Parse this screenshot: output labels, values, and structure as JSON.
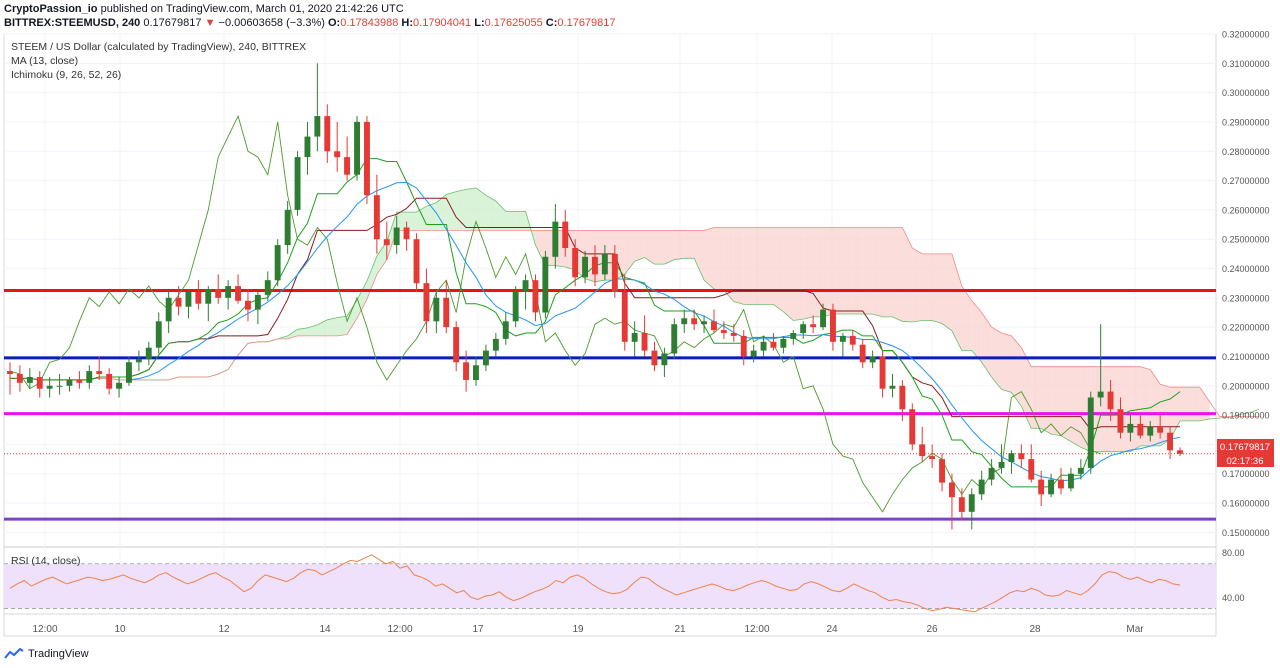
{
  "header": {
    "author": "CryptoPassion_io",
    "published_text": "published on TradingView.com, March 01, 2020 21:42:26 UTC",
    "symbol": "BITTREX:STEEMUSD, 240",
    "last": "0.17679817",
    "arrow": "▼",
    "change": "−0.00603658 (−3.3%)",
    "o_label": "O:",
    "o": "0.17843988",
    "h_label": "H:",
    "h": "0.17904041",
    "l_label": "L:",
    "l": "0.17625055",
    "c_label": "C:",
    "c": "0.17679817"
  },
  "footer": {
    "brand": "TradingView"
  },
  "colors": {
    "up": "#2e7d32",
    "down": "#e53935",
    "ma": "#2196f3",
    "tenkan": "#1aa31a",
    "kijun": "#8b1a1a",
    "lagging": "#4c9a2a",
    "kumo_bull": "#c9eec9",
    "kumo_bear": "#f9d0cc",
    "level_red": "#ee1111",
    "level_blue": "#0a1fb8",
    "level_magenta": "#ee11ee",
    "level_purple": "#7a44c2",
    "rsi_line": "#f0824a",
    "rsi_band": "#efe0fb"
  },
  "chart_data": [
    {
      "type": "candlestick",
      "title": "STEEM / US Dollar (calculated by TradingView), 240, BITTREX",
      "indicators": [
        "MA (13, close)",
        "Ichimoku (9, 26, 52, 26)"
      ],
      "ylim": [
        0.145,
        0.32
      ],
      "y_ticks": [
        "0.15000000",
        "0.16000000",
        "0.17000000",
        "0.18000000",
        "0.19000000",
        "0.20000000",
        "0.21000000",
        "0.22000000",
        "0.23000000",
        "0.24000000",
        "0.25000000",
        "0.26000000",
        "0.27000000",
        "0.28000000",
        "0.29000000",
        "0.30000000",
        "0.31000000",
        "0.32000000"
      ],
      "x_ticks": [
        "12:00",
        "10",
        "12",
        "14",
        "12:00",
        "17",
        "19",
        "21",
        "12:00",
        "24",
        "26",
        "28",
        "Mar"
      ],
      "last_price_label": "0.17679817",
      "countdown_label": "02:17:36",
      "last_price": 0.1768,
      "horizontal_levels": [
        {
          "name": "resistance-red",
          "value": 0.2325,
          "color": "#ee1111"
        },
        {
          "name": "support-blue",
          "value": 0.2095,
          "color": "#0a1fb8"
        },
        {
          "name": "support-magenta",
          "value": 0.1905,
          "color": "#ee11ee"
        },
        {
          "name": "support-purple",
          "value": 0.1545,
          "color": "#7a44c2"
        }
      ],
      "candles": [
        {
          "o": 0.205,
          "h": 0.208,
          "l": 0.197,
          "c": 0.204
        },
        {
          "o": 0.204,
          "h": 0.207,
          "l": 0.198,
          "c": 0.201
        },
        {
          "o": 0.201,
          "h": 0.206,
          "l": 0.199,
          "c": 0.203
        },
        {
          "o": 0.203,
          "h": 0.205,
          "l": 0.196,
          "c": 0.199
        },
        {
          "o": 0.199,
          "h": 0.203,
          "l": 0.196,
          "c": 0.2
        },
        {
          "o": 0.2,
          "h": 0.204,
          "l": 0.197,
          "c": 0.2
        },
        {
          "o": 0.2,
          "h": 0.203,
          "l": 0.198,
          "c": 0.202
        },
        {
          "o": 0.202,
          "h": 0.205,
          "l": 0.199,
          "c": 0.201
        },
        {
          "o": 0.201,
          "h": 0.207,
          "l": 0.199,
          "c": 0.205
        },
        {
          "o": 0.205,
          "h": 0.21,
          "l": 0.202,
          "c": 0.204
        },
        {
          "o": 0.204,
          "h": 0.206,
          "l": 0.197,
          "c": 0.199
        },
        {
          "o": 0.199,
          "h": 0.203,
          "l": 0.196,
          "c": 0.201
        },
        {
          "o": 0.201,
          "h": 0.21,
          "l": 0.2,
          "c": 0.208
        },
        {
          "o": 0.208,
          "h": 0.212,
          "l": 0.205,
          "c": 0.209
        },
        {
          "o": 0.209,
          "h": 0.215,
          "l": 0.207,
          "c": 0.213
        },
        {
          "o": 0.213,
          "h": 0.225,
          "l": 0.211,
          "c": 0.222
        },
        {
          "o": 0.222,
          "h": 0.233,
          "l": 0.218,
          "c": 0.23
        },
        {
          "o": 0.23,
          "h": 0.234,
          "l": 0.224,
          "c": 0.227
        },
        {
          "o": 0.227,
          "h": 0.233,
          "l": 0.223,
          "c": 0.232
        },
        {
          "o": 0.232,
          "h": 0.236,
          "l": 0.226,
          "c": 0.228
        },
        {
          "o": 0.228,
          "h": 0.234,
          "l": 0.222,
          "c": 0.233
        },
        {
          "o": 0.233,
          "h": 0.238,
          "l": 0.228,
          "c": 0.23
        },
        {
          "o": 0.23,
          "h": 0.236,
          "l": 0.226,
          "c": 0.234
        },
        {
          "o": 0.234,
          "h": 0.238,
          "l": 0.228,
          "c": 0.229
        },
        {
          "o": 0.229,
          "h": 0.233,
          "l": 0.222,
          "c": 0.226
        },
        {
          "o": 0.226,
          "h": 0.232,
          "l": 0.221,
          "c": 0.231
        },
        {
          "o": 0.231,
          "h": 0.239,
          "l": 0.229,
          "c": 0.236
        },
        {
          "o": 0.236,
          "h": 0.25,
          "l": 0.234,
          "c": 0.248
        },
        {
          "o": 0.248,
          "h": 0.263,
          "l": 0.245,
          "c": 0.26
        },
        {
          "o": 0.26,
          "h": 0.28,
          "l": 0.258,
          "c": 0.278
        },
        {
          "o": 0.278,
          "h": 0.29,
          "l": 0.272,
          "c": 0.285
        },
        {
          "o": 0.285,
          "h": 0.31,
          "l": 0.28,
          "c": 0.292
        },
        {
          "o": 0.292,
          "h": 0.296,
          "l": 0.276,
          "c": 0.28
        },
        {
          "o": 0.28,
          "h": 0.29,
          "l": 0.273,
          "c": 0.278
        },
        {
          "o": 0.278,
          "h": 0.285,
          "l": 0.27,
          "c": 0.272
        },
        {
          "o": 0.272,
          "h": 0.292,
          "l": 0.27,
          "c": 0.29
        },
        {
          "o": 0.29,
          "h": 0.292,
          "l": 0.262,
          "c": 0.265
        },
        {
          "o": 0.265,
          "h": 0.272,
          "l": 0.245,
          "c": 0.25
        },
        {
          "o": 0.25,
          "h": 0.256,
          "l": 0.243,
          "c": 0.248
        },
        {
          "o": 0.248,
          "h": 0.258,
          "l": 0.245,
          "c": 0.254
        },
        {
          "o": 0.254,
          "h": 0.256,
          "l": 0.246,
          "c": 0.25
        },
        {
          "o": 0.25,
          "h": 0.252,
          "l": 0.232,
          "c": 0.235
        },
        {
          "o": 0.235,
          "h": 0.24,
          "l": 0.218,
          "c": 0.222
        },
        {
          "o": 0.222,
          "h": 0.232,
          "l": 0.218,
          "c": 0.23
        },
        {
          "o": 0.23,
          "h": 0.236,
          "l": 0.218,
          "c": 0.22
        },
        {
          "o": 0.22,
          "h": 0.222,
          "l": 0.205,
          "c": 0.208
        },
        {
          "o": 0.208,
          "h": 0.212,
          "l": 0.198,
          "c": 0.202
        },
        {
          "o": 0.202,
          "h": 0.21,
          "l": 0.2,
          "c": 0.207
        },
        {
          "o": 0.207,
          "h": 0.214,
          "l": 0.205,
          "c": 0.212
        },
        {
          "o": 0.212,
          "h": 0.218,
          "l": 0.21,
          "c": 0.216
        },
        {
          "o": 0.216,
          "h": 0.225,
          "l": 0.214,
          "c": 0.222
        },
        {
          "o": 0.222,
          "h": 0.234,
          "l": 0.22,
          "c": 0.232
        },
        {
          "o": 0.232,
          "h": 0.238,
          "l": 0.226,
          "c": 0.236
        },
        {
          "o": 0.236,
          "h": 0.238,
          "l": 0.222,
          "c": 0.225
        },
        {
          "o": 0.225,
          "h": 0.246,
          "l": 0.223,
          "c": 0.244
        },
        {
          "o": 0.244,
          "h": 0.262,
          "l": 0.24,
          "c": 0.256
        },
        {
          "o": 0.256,
          "h": 0.26,
          "l": 0.244,
          "c": 0.247
        },
        {
          "o": 0.247,
          "h": 0.25,
          "l": 0.234,
          "c": 0.237
        },
        {
          "o": 0.237,
          "h": 0.246,
          "l": 0.235,
          "c": 0.244
        },
        {
          "o": 0.244,
          "h": 0.248,
          "l": 0.234,
          "c": 0.238
        },
        {
          "o": 0.238,
          "h": 0.248,
          "l": 0.236,
          "c": 0.245
        },
        {
          "o": 0.245,
          "h": 0.248,
          "l": 0.23,
          "c": 0.232
        },
        {
          "o": 0.232,
          "h": 0.238,
          "l": 0.212,
          "c": 0.215
        },
        {
          "o": 0.215,
          "h": 0.222,
          "l": 0.21,
          "c": 0.218
        },
        {
          "o": 0.218,
          "h": 0.224,
          "l": 0.21,
          "c": 0.212
        },
        {
          "o": 0.212,
          "h": 0.215,
          "l": 0.205,
          "c": 0.207
        },
        {
          "o": 0.207,
          "h": 0.213,
          "l": 0.203,
          "c": 0.211
        },
        {
          "o": 0.211,
          "h": 0.223,
          "l": 0.209,
          "c": 0.221
        },
        {
          "o": 0.221,
          "h": 0.226,
          "l": 0.218,
          "c": 0.223
        },
        {
          "o": 0.223,
          "h": 0.226,
          "l": 0.219,
          "c": 0.221
        },
        {
          "o": 0.221,
          "h": 0.224,
          "l": 0.218,
          "c": 0.222
        },
        {
          "o": 0.222,
          "h": 0.226,
          "l": 0.218,
          "c": 0.219
        },
        {
          "o": 0.219,
          "h": 0.222,
          "l": 0.216,
          "c": 0.218
        },
        {
          "o": 0.218,
          "h": 0.221,
          "l": 0.215,
          "c": 0.217
        },
        {
          "o": 0.217,
          "h": 0.219,
          "l": 0.207,
          "c": 0.21
        },
        {
          "o": 0.21,
          "h": 0.214,
          "l": 0.208,
          "c": 0.212
        },
        {
          "o": 0.212,
          "h": 0.217,
          "l": 0.21,
          "c": 0.215
        },
        {
          "o": 0.215,
          "h": 0.218,
          "l": 0.212,
          "c": 0.213
        },
        {
          "o": 0.213,
          "h": 0.217,
          "l": 0.211,
          "c": 0.216
        },
        {
          "o": 0.216,
          "h": 0.219,
          "l": 0.214,
          "c": 0.218
        },
        {
          "o": 0.218,
          "h": 0.222,
          "l": 0.216,
          "c": 0.221
        },
        {
          "o": 0.221,
          "h": 0.224,
          "l": 0.218,
          "c": 0.22
        },
        {
          "o": 0.22,
          "h": 0.228,
          "l": 0.219,
          "c": 0.226
        },
        {
          "o": 0.226,
          "h": 0.228,
          "l": 0.212,
          "c": 0.215
        },
        {
          "o": 0.215,
          "h": 0.218,
          "l": 0.21,
          "c": 0.217
        },
        {
          "o": 0.217,
          "h": 0.219,
          "l": 0.212,
          "c": 0.214
        },
        {
          "o": 0.214,
          "h": 0.216,
          "l": 0.206,
          "c": 0.208
        },
        {
          "o": 0.208,
          "h": 0.212,
          "l": 0.206,
          "c": 0.21
        },
        {
          "o": 0.21,
          "h": 0.212,
          "l": 0.196,
          "c": 0.199
        },
        {
          "o": 0.199,
          "h": 0.204,
          "l": 0.196,
          "c": 0.2
        },
        {
          "o": 0.2,
          "h": 0.202,
          "l": 0.188,
          "c": 0.192
        },
        {
          "o": 0.192,
          "h": 0.194,
          "l": 0.178,
          "c": 0.18
        },
        {
          "o": 0.18,
          "h": 0.186,
          "l": 0.174,
          "c": 0.176
        },
        {
          "o": 0.176,
          "h": 0.18,
          "l": 0.172,
          "c": 0.175
        },
        {
          "o": 0.175,
          "h": 0.177,
          "l": 0.164,
          "c": 0.167
        },
        {
          "o": 0.167,
          "h": 0.17,
          "l": 0.151,
          "c": 0.162
        },
        {
          "o": 0.162,
          "h": 0.165,
          "l": 0.154,
          "c": 0.157
        },
        {
          "o": 0.157,
          "h": 0.165,
          "l": 0.151,
          "c": 0.163
        },
        {
          "o": 0.163,
          "h": 0.171,
          "l": 0.161,
          "c": 0.168
        },
        {
          "o": 0.168,
          "h": 0.175,
          "l": 0.166,
          "c": 0.172
        },
        {
          "o": 0.172,
          "h": 0.18,
          "l": 0.17,
          "c": 0.174
        },
        {
          "o": 0.174,
          "h": 0.178,
          "l": 0.17,
          "c": 0.177
        },
        {
          "o": 0.177,
          "h": 0.18,
          "l": 0.172,
          "c": 0.175
        },
        {
          "o": 0.175,
          "h": 0.18,
          "l": 0.167,
          "c": 0.168
        },
        {
          "o": 0.168,
          "h": 0.171,
          "l": 0.159,
          "c": 0.163
        },
        {
          "o": 0.163,
          "h": 0.17,
          "l": 0.162,
          "c": 0.168
        },
        {
          "o": 0.168,
          "h": 0.172,
          "l": 0.163,
          "c": 0.165
        },
        {
          "o": 0.165,
          "h": 0.172,
          "l": 0.164,
          "c": 0.17
        },
        {
          "o": 0.17,
          "h": 0.175,
          "l": 0.168,
          "c": 0.172
        },
        {
          "o": 0.172,
          "h": 0.198,
          "l": 0.17,
          "c": 0.196
        },
        {
          "o": 0.196,
          "h": 0.221,
          "l": 0.193,
          "c": 0.198
        },
        {
          "o": 0.198,
          "h": 0.202,
          "l": 0.188,
          "c": 0.192
        },
        {
          "o": 0.192,
          "h": 0.196,
          "l": 0.182,
          "c": 0.184
        },
        {
          "o": 0.184,
          "h": 0.19,
          "l": 0.181,
          "c": 0.187
        },
        {
          "o": 0.187,
          "h": 0.19,
          "l": 0.182,
          "c": 0.183
        },
        {
          "o": 0.183,
          "h": 0.188,
          "l": 0.181,
          "c": 0.186
        },
        {
          "o": 0.186,
          "h": 0.19,
          "l": 0.182,
          "c": 0.184
        },
        {
          "o": 0.184,
          "h": 0.186,
          "l": 0.175,
          "c": 0.178
        },
        {
          "o": 0.178,
          "h": 0.179,
          "l": 0.176,
          "c": 0.1768
        }
      ]
    },
    {
      "type": "line",
      "title": "RSI (14, close)",
      "ylim": [
        25,
        85
      ],
      "y_ticks": [
        "80.00",
        "40.00"
      ],
      "band": [
        30,
        70
      ],
      "values": [
        48,
        52,
        55,
        50,
        53,
        56,
        58,
        55,
        52,
        54,
        56,
        58,
        57,
        55,
        56,
        58,
        60,
        57,
        55,
        53,
        56,
        60,
        62,
        58,
        55,
        52,
        54,
        57,
        60,
        62,
        58,
        55,
        50,
        45,
        48,
        55,
        60,
        58,
        56,
        54,
        57,
        62,
        65,
        64,
        60,
        63,
        66,
        70,
        73,
        72,
        75,
        78,
        74,
        70,
        72,
        66,
        68,
        60,
        58,
        55,
        50,
        52,
        48,
        44,
        46,
        40,
        38,
        41,
        42,
        45,
        40,
        37,
        39,
        42,
        45,
        47,
        50,
        55,
        53,
        58,
        60,
        57,
        52,
        48,
        45,
        43,
        44,
        47,
        53,
        58,
        57,
        52,
        48,
        45,
        42,
        44,
        46,
        48,
        50,
        52,
        50,
        47,
        46,
        48,
        51,
        53,
        55,
        53,
        50,
        48,
        46,
        47,
        52,
        54,
        52,
        49,
        46,
        45,
        48,
        52,
        49,
        46,
        44,
        40,
        37,
        38,
        36,
        35,
        33,
        30,
        28,
        29,
        31,
        30,
        29,
        28,
        27,
        30,
        33,
        36,
        40,
        44,
        46,
        45,
        48,
        46,
        42,
        41,
        42,
        46,
        44,
        42,
        46,
        52,
        60,
        63,
        62,
        58,
        56,
        58,
        55,
        53,
        56,
        55,
        52,
        51
      ]
    }
  ]
}
